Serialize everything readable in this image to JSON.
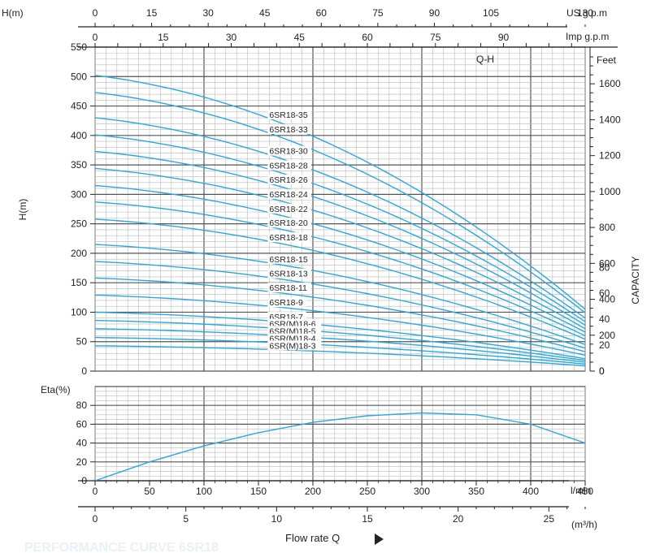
{
  "chart_data": [
    {
      "type": "line",
      "title": "Q-H",
      "ylabel": "H(m)",
      "ylabel_top": "H(m)",
      "ylim": [
        0,
        550
      ],
      "yticks": [
        0,
        50,
        100,
        150,
        200,
        250,
        300,
        350,
        400,
        450,
        500,
        550
      ],
      "xlim": [
        0,
        450
      ],
      "x_unit": "l/min",
      "right_axis": {
        "label": "Feet",
        "ticks": [
          0,
          200,
          400,
          600,
          800,
          1000,
          1200,
          1400,
          1600
        ]
      },
      "right_label": "CAPACITY",
      "right_ticks_lower": [
        0,
        20,
        40,
        60,
        80
      ],
      "top_axes": [
        {
          "label": "US g.p.m",
          "max": 130,
          "ticks": [
            0,
            15,
            30,
            45,
            60,
            75,
            90,
            105,
            130
          ]
        },
        {
          "label": "Imp g.p.m",
          "max": 108,
          "ticks": [
            0,
            15,
            30,
            45,
            60,
            75,
            90
          ]
        }
      ],
      "series": [
        {
          "name": "6SR18-35",
          "shutoff": 502,
          "at_end": 105
        },
        {
          "name": "6SR18-33",
          "shutoff": 473,
          "at_end": 99
        },
        {
          "name": "6SR18-30",
          "shutoff": 430,
          "at_end": 90
        },
        {
          "name": "6SR18-28",
          "shutoff": 401,
          "at_end": 84
        },
        {
          "name": "6SR18-26",
          "shutoff": 373,
          "at_end": 78
        },
        {
          "name": "6SR18-24",
          "shutoff": 344,
          "at_end": 72
        },
        {
          "name": "6SR18-22",
          "shutoff": 315,
          "at_end": 66
        },
        {
          "name": "6SR18-20",
          "shutoff": 287,
          "at_end": 60
        },
        {
          "name": "6SR18-18",
          "shutoff": 258,
          "at_end": 54
        },
        {
          "name": "6SR18-15",
          "shutoff": 215,
          "at_end": 45
        },
        {
          "name": "6SR18-13",
          "shutoff": 186,
          "at_end": 39
        },
        {
          "name": "6SR18-11",
          "shutoff": 158,
          "at_end": 33
        },
        {
          "name": "6SR18-9",
          "shutoff": 129,
          "at_end": 27
        },
        {
          "name": "6SR18-7",
          "shutoff": 100,
          "at_end": 21
        },
        {
          "name": "6SR(M)18-6",
          "shutoff": 86,
          "at_end": 18
        },
        {
          "name": "6SR(M)18-5",
          "shutoff": 72,
          "at_end": 15
        },
        {
          "name": "6SR(M)18-4",
          "shutoff": 57,
          "at_end": 12
        },
        {
          "name": "6SR(M)18-3",
          "shutoff": 43,
          "at_end": 9
        }
      ],
      "series_label_x": 160
    },
    {
      "type": "line",
      "ylabel": "Eta(%)",
      "ylim": [
        0,
        100
      ],
      "yticks": [
        0,
        20,
        40,
        60,
        80
      ],
      "xlim": [
        0,
        450
      ],
      "xlabel": "Flow rate Q",
      "x_unit": "l/min",
      "xticks": [
        0,
        50,
        100,
        150,
        200,
        250,
        300,
        350,
        400,
        450
      ],
      "series": [
        {
          "name": "Eta",
          "x": [
            0,
            50,
            100,
            150,
            200,
            250,
            300,
            350,
            400,
            450
          ],
          "y": [
            0,
            20,
            37,
            51,
            62,
            69,
            72,
            70,
            60,
            40
          ]
        }
      ],
      "bottom_axis": {
        "label": "(m³/h)",
        "max": 27,
        "ticks": [
          0,
          5,
          10,
          15,
          20,
          25
        ]
      }
    }
  ],
  "colors": {
    "curve": "#29a8e0",
    "grid_major": "#555555",
    "grid_minor": "#b8b8b8",
    "axis": "#222222"
  },
  "footer": "PERFORMANCE CURVE 6SR18"
}
